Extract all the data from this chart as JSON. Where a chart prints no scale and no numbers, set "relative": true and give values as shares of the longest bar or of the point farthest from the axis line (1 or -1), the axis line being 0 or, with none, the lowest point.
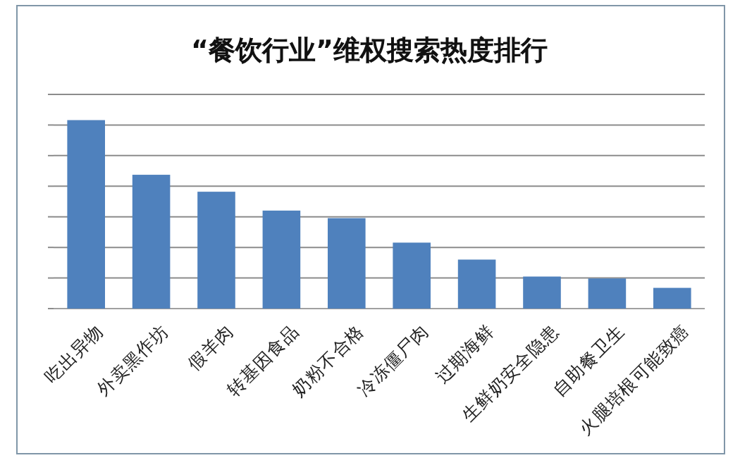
{
  "chart_data": {
    "type": "bar",
    "title": "“餐饮行业”维权搜索热度排行",
    "categories": [
      "吃出异物",
      "外卖黑作坊",
      "假羊肉",
      "转基因食品",
      "奶粉不合格",
      "冷冻僵尸肉",
      "过期海鲜",
      "生鲜奶安全隐患",
      "自助餐卫生",
      "火腿培根可能致癌"
    ],
    "values": [
      1,
      0.71,
      0.62,
      0.52,
      0.48,
      0.35,
      0.26,
      0.17,
      0.16,
      0.11
    ],
    "color": "#4f81bd",
    "relative": true,
    "grid": "y"
  }
}
